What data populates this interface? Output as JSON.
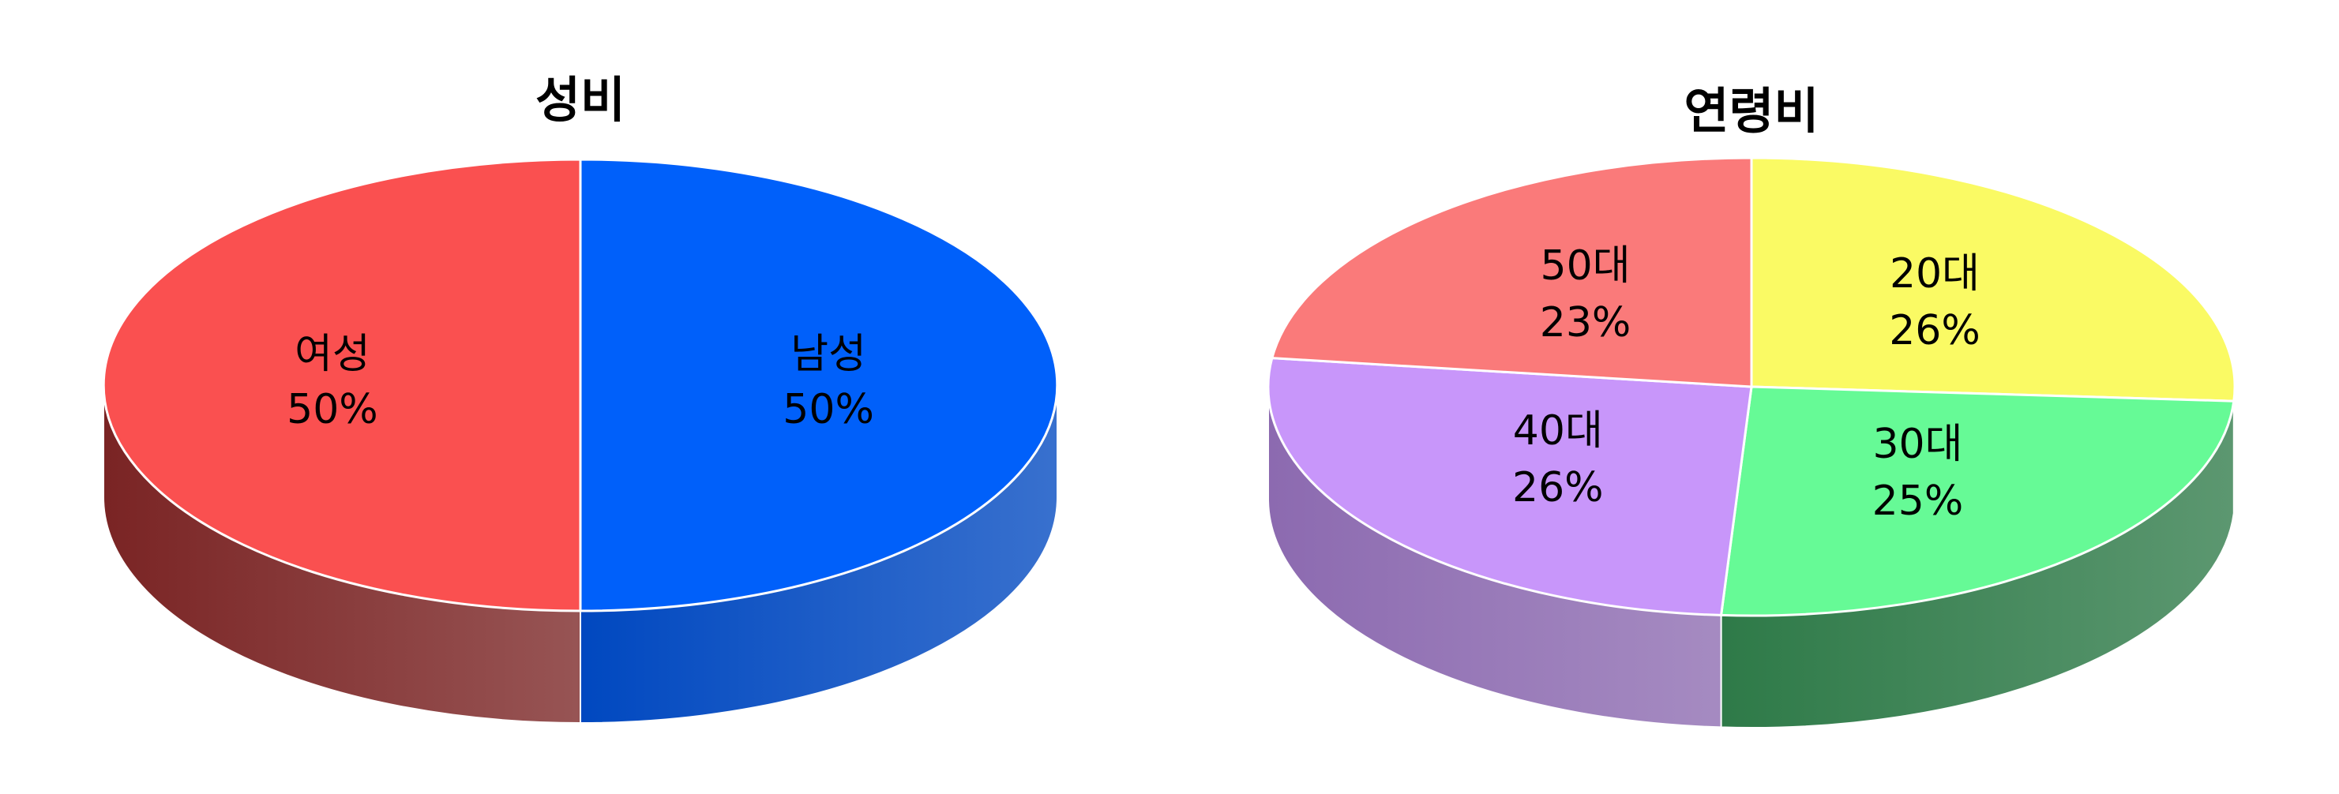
{
  "chart_data": [
    {
      "type": "pie",
      "style": "3d",
      "title": "성비",
      "slices": [
        {
          "label": "남성",
          "value": 50,
          "display": "50%",
          "color": "#0060FA",
          "side_color": "#0048C0"
        },
        {
          "label": "여성",
          "value": 50,
          "display": "50%",
          "color": "#FA5050",
          "side_color": "#7A2424"
        }
      ]
    },
    {
      "type": "pie",
      "style": "3d",
      "title": "연령비",
      "slices": [
        {
          "label": "20대",
          "value": 26,
          "display": "26%",
          "color": "#FAFA64",
          "side_color": "#B8B84A"
        },
        {
          "label": "30대",
          "value": 25,
          "display": "25%",
          "color": "#66FA96",
          "side_color": "#2E7A48"
        },
        {
          "label": "40대",
          "value": 26,
          "display": "26%",
          "color": "#C896FA",
          "side_color": "#8C6AB0"
        },
        {
          "label": "50대",
          "value": 23,
          "display": "23%",
          "color": "#FA7A7A",
          "side_color": "#B05454"
        }
      ]
    }
  ]
}
